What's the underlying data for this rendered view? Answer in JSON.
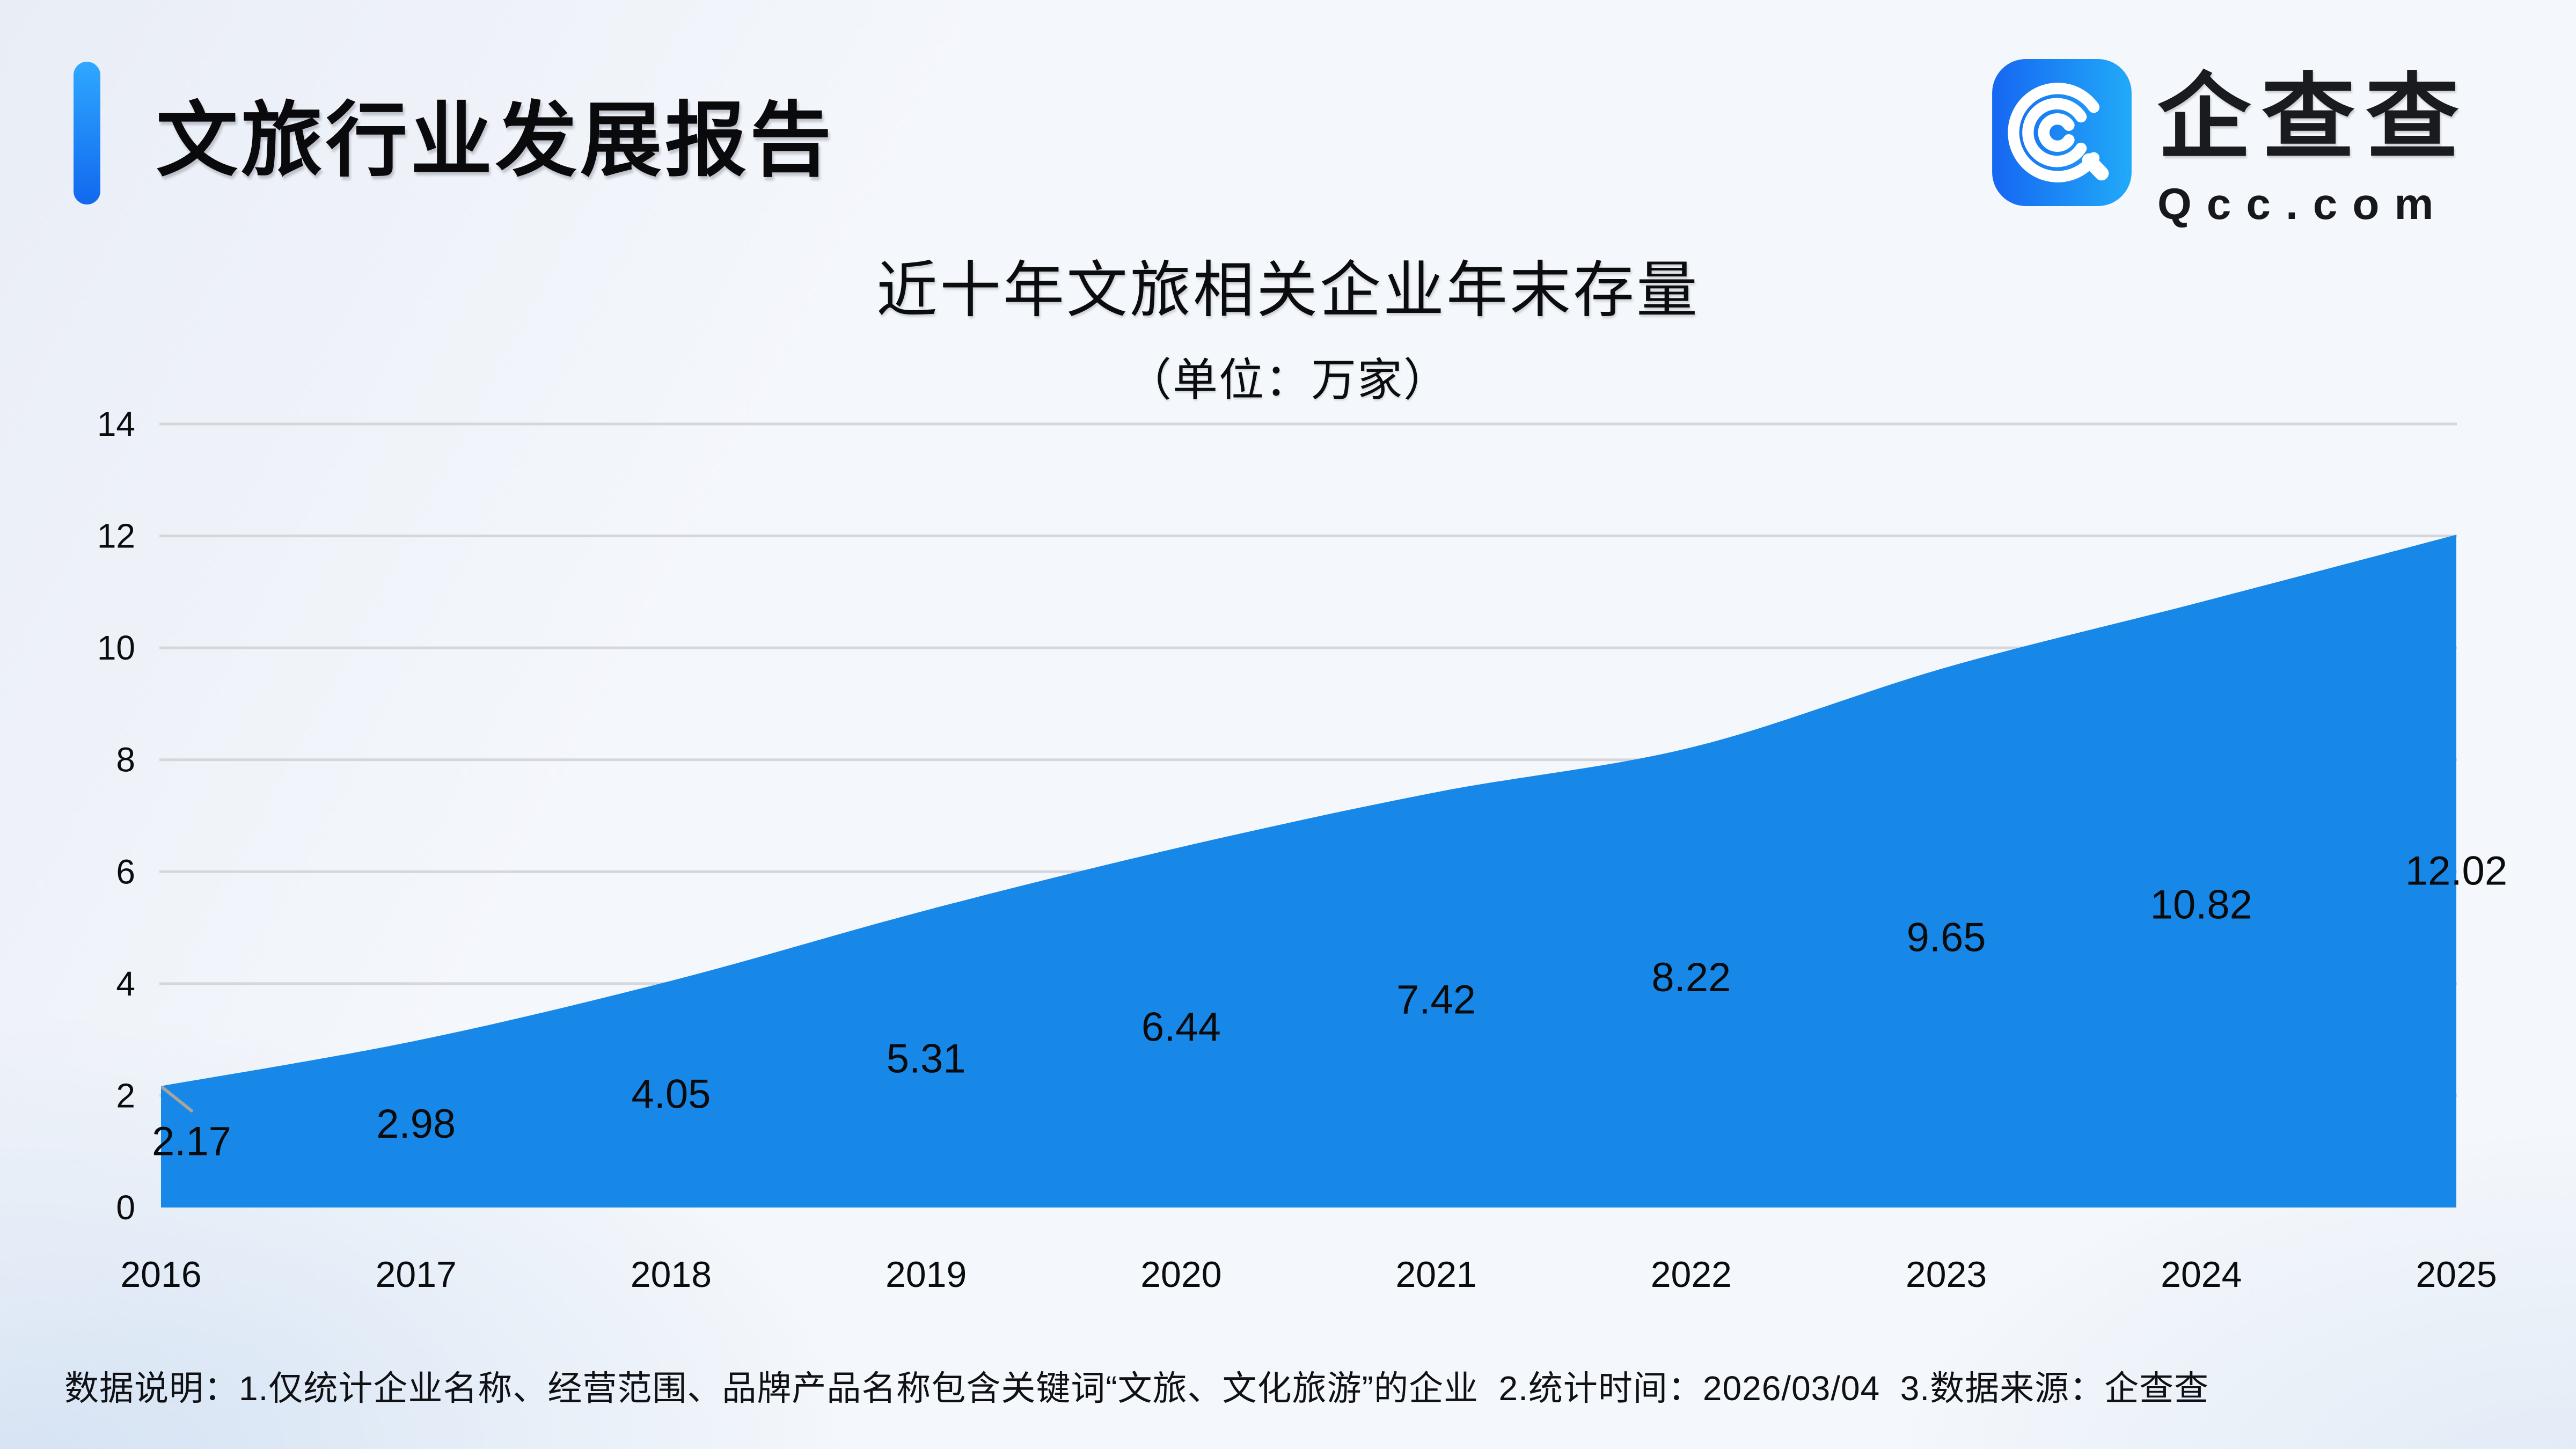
{
  "header": {
    "title": "文旅行业发展报告"
  },
  "logo": {
    "icon": "qcc-logo-icon",
    "name_cn": "企查查",
    "domain": "Qcc.com"
  },
  "chart": {
    "title": "近十年文旅相关企业年末存量",
    "subtitle": "（单位：万家）"
  },
  "chart_data": {
    "type": "area",
    "categories": [
      "2016",
      "2017",
      "2018",
      "2019",
      "2020",
      "2021",
      "2022",
      "2023",
      "2024",
      "2025"
    ],
    "values": [
      2.17,
      2.98,
      4.05,
      5.31,
      6.44,
      7.42,
      8.22,
      9.65,
      10.82,
      12.02
    ],
    "title": "近十年文旅相关企业年末存量",
    "unit_label": "（单位：万家）",
    "xlabel": "",
    "ylabel": "",
    "ylim": [
      0,
      14
    ],
    "yticks": [
      0,
      2,
      4,
      6,
      8,
      10,
      12,
      14
    ],
    "grid": true,
    "legend": "none",
    "smooth": true,
    "area_color": "#1787E8",
    "data_label_color": "#0B0B0C",
    "first_label_leader_line": true
  },
  "colors": {
    "area": "#1787E8",
    "grid_line": "#D5D7DB",
    "leader_line": "#A8A49D",
    "accent_bar_top": "#2FA8FF",
    "accent_bar_bottom": "#1168EE",
    "logo_gradient_left": "#1667F2",
    "logo_gradient_right": "#21AAF8",
    "text": "#0B0C0E"
  },
  "footnote": {
    "text": "数据说明：1.仅统计企业名称、经营范围、品牌产品名称包含关键词“文旅、文化旅游”的企业  2.统计时间：2026/03/04  3.数据来源：企查查"
  }
}
